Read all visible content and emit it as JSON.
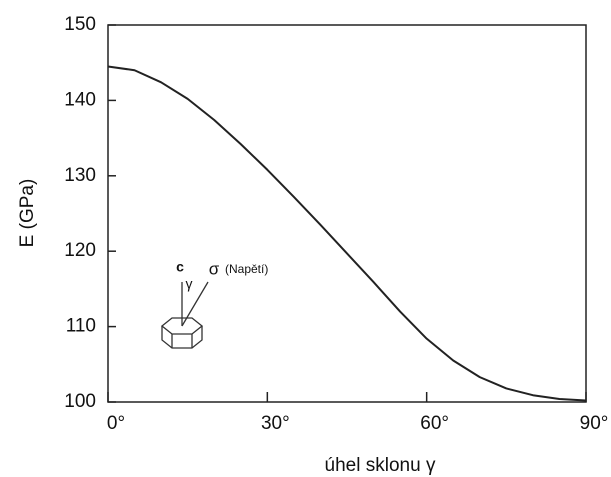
{
  "chart_data": {
    "type": "line",
    "x_label": "úhel sklonu γ",
    "y_label": "E (GPa)",
    "annotations": [
      "c",
      "γ",
      "σ",
      "(Napětí)"
    ],
    "x": [
      0,
      5,
      10,
      15,
      20,
      25,
      30,
      35,
      40,
      45,
      50,
      55,
      60,
      65,
      70,
      75,
      80,
      85,
      90
    ],
    "series": [
      {
        "color": "#222222",
        "values": [
          144.5,
          144.0,
          142.4,
          140.2,
          137.4,
          134.2,
          130.8,
          127.2,
          123.5,
          119.7,
          115.9,
          112.0,
          108.4,
          105.5,
          103.3,
          101.8,
          100.9,
          100.4,
          100.2
        ]
      }
    ],
    "xlim": [
      0,
      90
    ],
    "xticks": [
      {
        "value": 0,
        "label": "0°"
      },
      {
        "value": 30,
        "label": "30°"
      },
      {
        "value": 60,
        "label": "60°"
      },
      {
        "value": 90,
        "label": "90°"
      }
    ],
    "ylim": [
      100,
      150
    ],
    "yticks": [
      100,
      110,
      120,
      130,
      140,
      150
    ],
    "grid": false
  }
}
